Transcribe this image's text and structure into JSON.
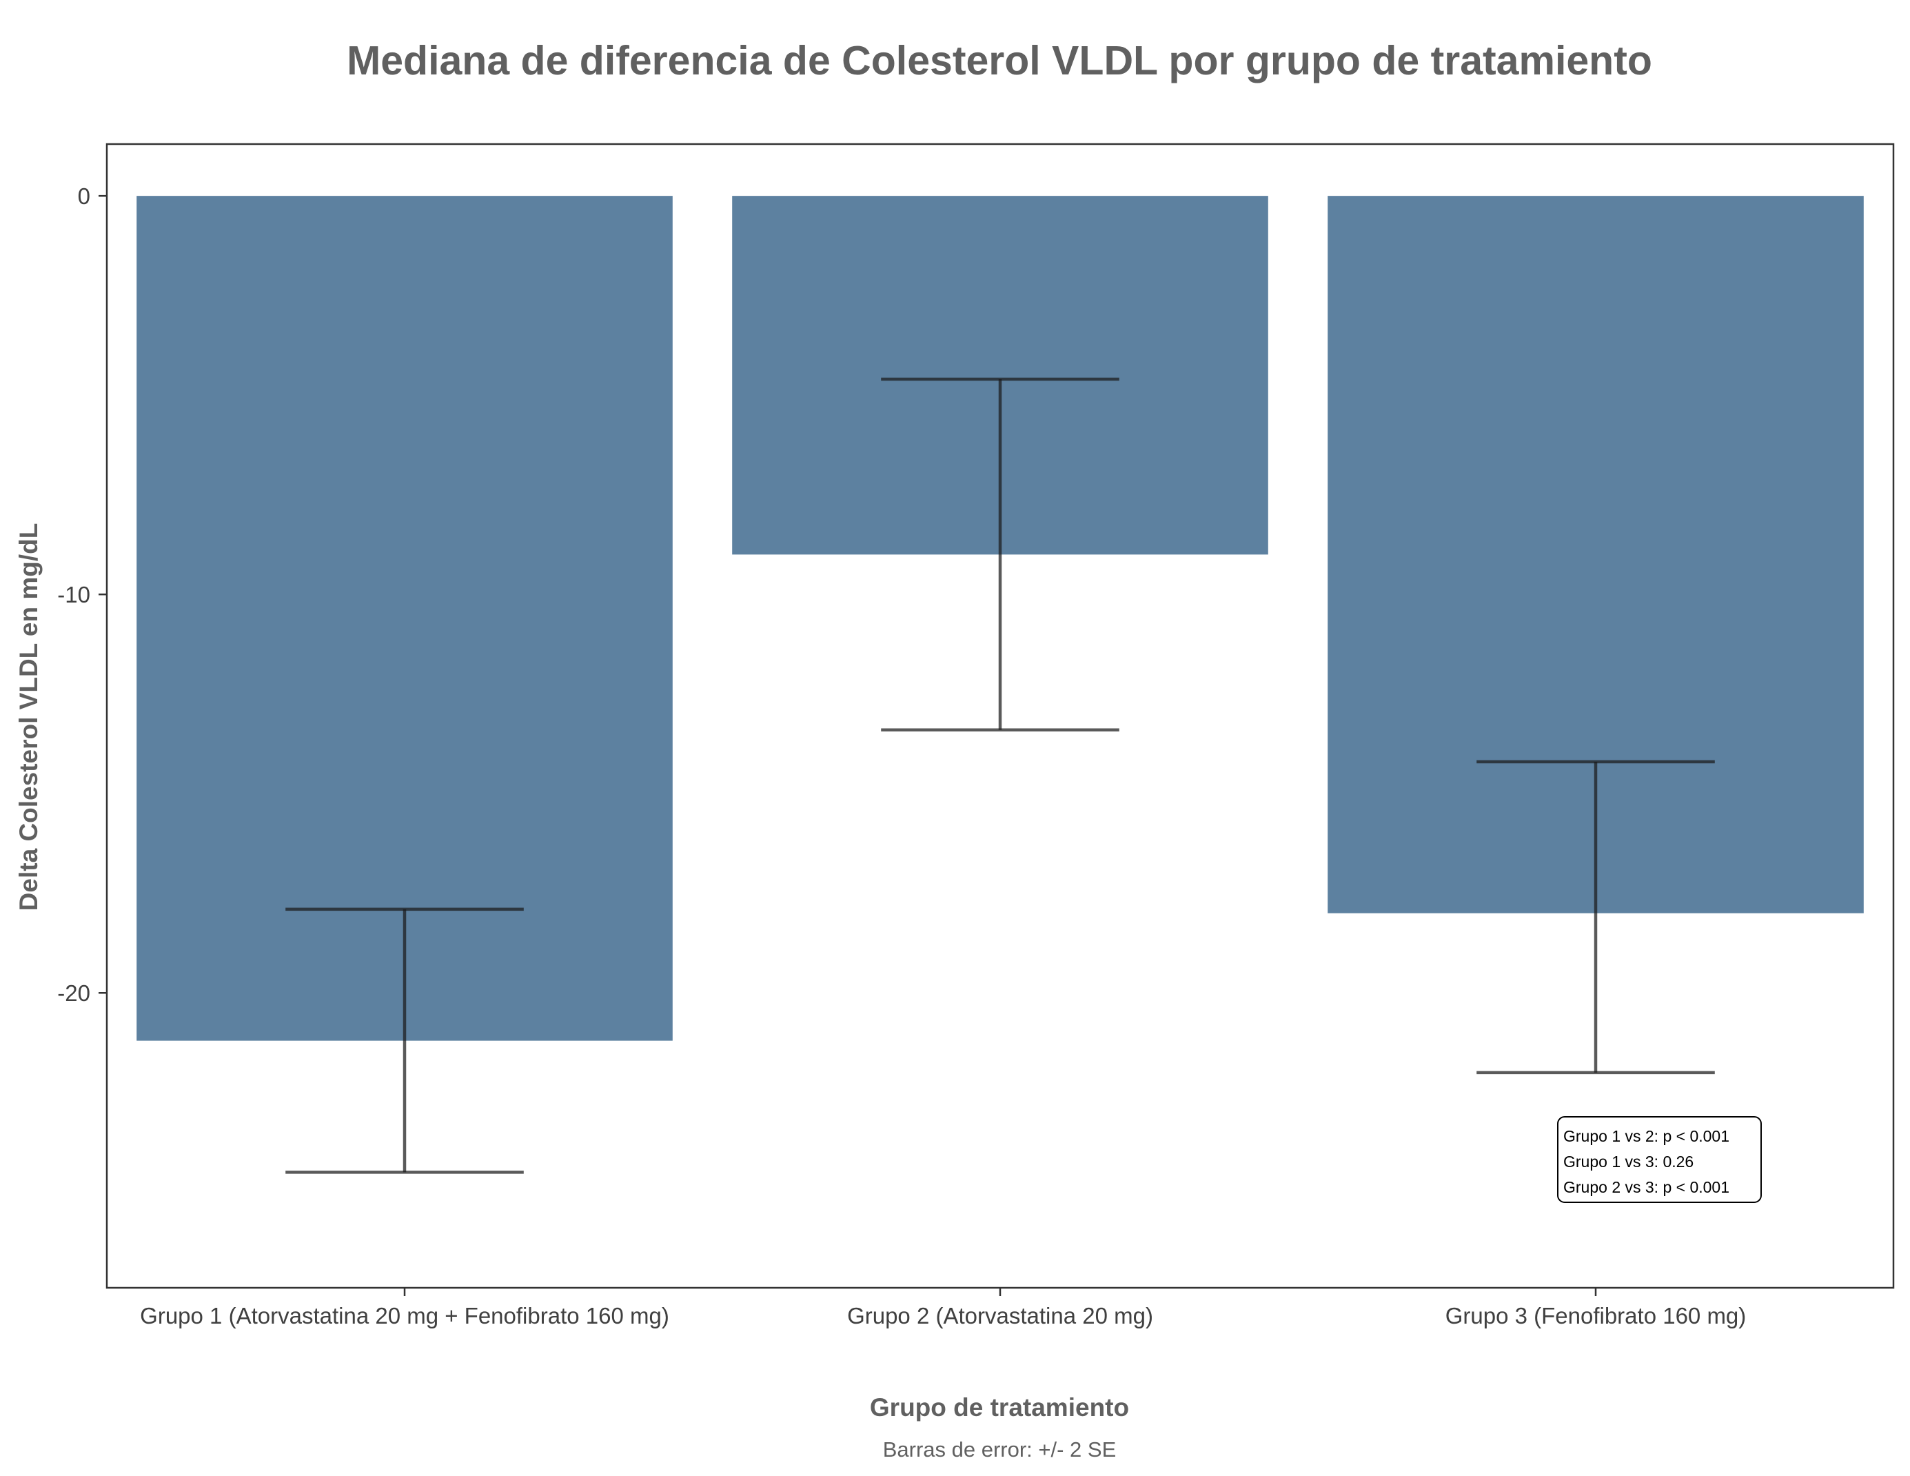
{
  "chart_data": {
    "type": "bar",
    "title": "Mediana de diferencia de Colesterol VLDL por grupo de tratamiento",
    "xlabel": "Grupo de tratamiento",
    "ylabel": "Delta Colesterol VLDL en mg/dL",
    "caption": "Barras de error: +/- 2 SE",
    "categories": [
      "Grupo 1 (Atorvastatina 20 mg + Fenofibrato 160 mg)",
      "Grupo 2 (Atorvastatina 20 mg)",
      "Grupo 3 (Fenofibrato 160 mg)"
    ],
    "values": [
      -21.2,
      -9.0,
      -18.0
    ],
    "error_low": [
      -24.5,
      -13.4,
      -22.0
    ],
    "error_high": [
      -17.9,
      -4.6,
      -14.2
    ],
    "ylim": [
      -27.4,
      1.3
    ],
    "yticks": [
      0,
      -10,
      -20
    ],
    "ytick_labels": [
      "0",
      "-10",
      "-20"
    ],
    "grid": false,
    "annotation": {
      "lines": [
        "Grupo 1 vs 2: p < 0.001",
        "Grupo 1 vs 3: 0.26",
        "Grupo 2 vs 3: p < 0.001"
      ]
    },
    "colors": {
      "bar": "#5d81a0",
      "errorbar": "#1a1a1a",
      "text": "#606060",
      "tick_text": "#404040",
      "frame": "#333333"
    }
  }
}
